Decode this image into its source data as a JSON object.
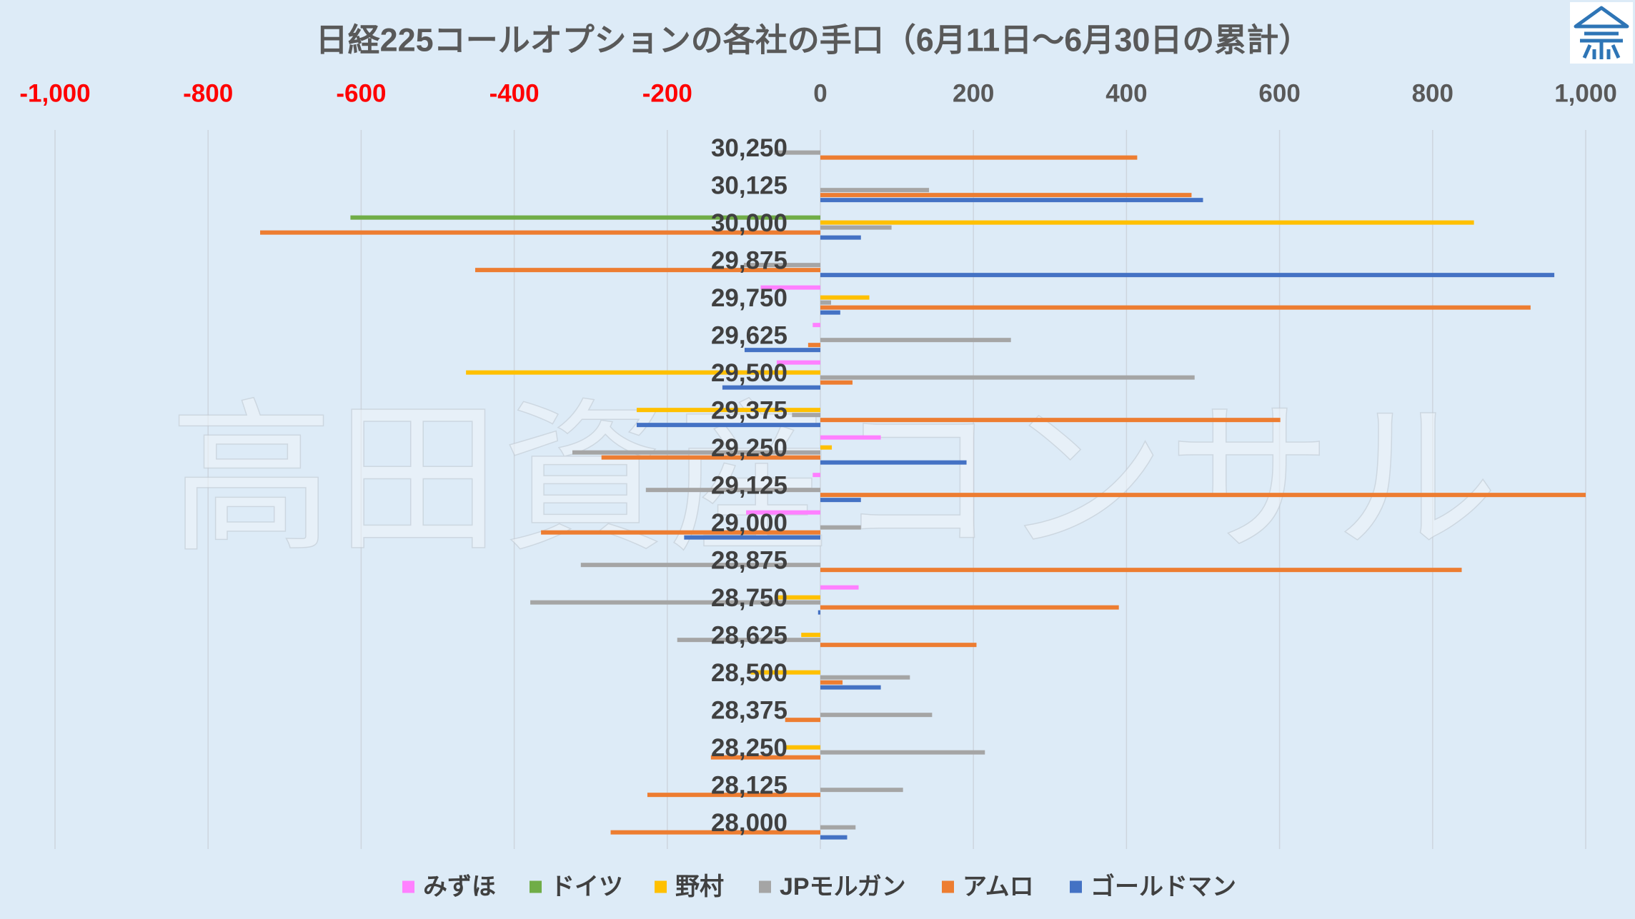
{
  "chart_data": {
    "type": "bar",
    "orientation": "horizontal",
    "title": "日経225コールオプションの各社の手口（6月11日～6月30日の累計）",
    "categories": [
      "30,250",
      "30,125",
      "30,000",
      "29,875",
      "29,750",
      "29,625",
      "29,500",
      "29,375",
      "29,250",
      "29,125",
      "29,000",
      "28,875",
      "28,750",
      "28,625",
      "28,500",
      "28,375",
      "28,250",
      "28,125",
      "28,000"
    ],
    "xlim": [
      -1000,
      1000
    ],
    "xticks": [
      -1000,
      -800,
      -600,
      -400,
      -200,
      0,
      200,
      400,
      600,
      800,
      1000
    ],
    "xtick_labels": [
      "-1,000",
      "-800",
      "-600",
      "-400",
      "-200",
      "0",
      "200",
      "400",
      "600",
      "800",
      "1,000"
    ],
    "grid": true,
    "legend": "bottom",
    "series": [
      {
        "name": "みずほ",
        "color": "#FF80FF",
        "values": [
          0,
          0,
          0,
          0,
          -78,
          -10,
          -57,
          0,
          79,
          -10,
          -97,
          0,
          50,
          0,
          0,
          0,
          0,
          0,
          0
        ]
      },
      {
        "name": "ドイツ",
        "color": "#70AD47",
        "values": [
          0,
          0,
          -614,
          0,
          0,
          0,
          0,
          0,
          0,
          0,
          0,
          0,
          0,
          0,
          0,
          0,
          0,
          0,
          0
        ]
      },
      {
        "name": "野村",
        "color": "#FFC000",
        "values": [
          0,
          0,
          854,
          0,
          64,
          0,
          -463,
          -240,
          15,
          0,
          0,
          0,
          -60,
          -25,
          -91,
          0,
          -46,
          0,
          0
        ]
      },
      {
        "name": "JPモルガン",
        "color": "#A5A5A5",
        "values": [
          -60,
          142,
          93,
          -100,
          14,
          249,
          489,
          -37,
          -324,
          -228,
          53,
          -313,
          -379,
          -187,
          117,
          146,
          215,
          108,
          46
        ]
      },
      {
        "name": "アムロ",
        "color": "#ED7D31",
        "values": [
          414,
          485,
          -732,
          -451,
          928,
          -16,
          42,
          601,
          -286,
          1000,
          -365,
          838,
          390,
          204,
          29,
          -46,
          -143,
          -226,
          -274
        ]
      },
      {
        "name": "ゴールドマン",
        "color": "#4472C4",
        "values": [
          0,
          500,
          53,
          959,
          26,
          -99,
          -128,
          -240,
          191,
          53,
          -178,
          0,
          -3,
          0,
          79,
          0,
          0,
          0,
          35
        ]
      }
    ]
  },
  "watermark": {
    "text": "高田資産コンサル"
  },
  "logo": {
    "icon": "house-logo-icon",
    "color": "#2E75B6"
  },
  "colors": {
    "background": "#DDEBF7",
    "gridline": "#CDD5DE",
    "negative_tick": "#FF0000",
    "positive_tick": "#595959"
  }
}
